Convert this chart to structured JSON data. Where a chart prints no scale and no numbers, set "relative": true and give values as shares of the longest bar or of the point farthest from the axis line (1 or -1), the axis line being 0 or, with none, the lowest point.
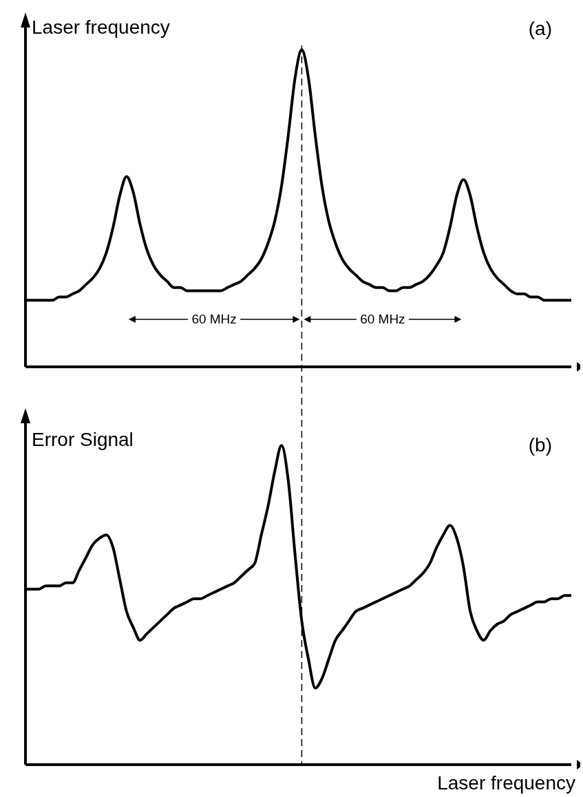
{
  "chart_data": [
    {
      "type": "line",
      "relative": true,
      "ylabel": "Laser frequency",
      "annotations": [
        "(a)",
        "60 MHz",
        "60 MHz"
      ],
      "legend": false,
      "grid": false,
      "marker": "none",
      "line_style": "solid",
      "categories": [
        null,
        null,
        null,
        null,
        null,
        null,
        null,
        null,
        null,
        null,
        null,
        null,
        null,
        null,
        null,
        null,
        null,
        null,
        null,
        null,
        null,
        null,
        null,
        null,
        null,
        null,
        null,
        null,
        null,
        null,
        null,
        null,
        null,
        null,
        null,
        null,
        null,
        null,
        null,
        null,
        null,
        null,
        null,
        null,
        null,
        null,
        null,
        null,
        null,
        null,
        null,
        null,
        null,
        null,
        null,
        null,
        null,
        null,
        null,
        null,
        null,
        null,
        null,
        null,
        null,
        null,
        null,
        null,
        null,
        null,
        null,
        null,
        null,
        null,
        null,
        null,
        null,
        null,
        null,
        null,
        null,
        null
      ],
      "series": [
        {
          "color": "#000000",
          "values": [
            0.21,
            0.21,
            0.21,
            0.21,
            0.21,
            0.22,
            0.22,
            0.23,
            0.24,
            0.26,
            0.28,
            0.31,
            0.36,
            0.44,
            0.54,
            0.6,
            0.55,
            0.45,
            0.37,
            0.32,
            0.29,
            0.27,
            0.25,
            0.25,
            0.24,
            0.24,
            0.24,
            0.24,
            0.24,
            0.24,
            0.25,
            0.26,
            0.27,
            0.29,
            0.31,
            0.34,
            0.39,
            0.46,
            0.57,
            0.73,
            0.91,
            1,
            0.91,
            0.73,
            0.57,
            0.46,
            0.39,
            0.34,
            0.31,
            0.29,
            0.27,
            0.26,
            0.25,
            0.25,
            0.24,
            0.24,
            0.25,
            0.25,
            0.26,
            0.27,
            0.29,
            0.32,
            0.36,
            0.44,
            0.54,
            0.59,
            0.54,
            0.44,
            0.36,
            0.31,
            0.28,
            0.26,
            0.24,
            0.23,
            0.23,
            0.22,
            0.22,
            0.21,
            0.21,
            0.21,
            0.21,
            0.21
          ]
        }
      ]
    },
    {
      "type": "line",
      "relative": true,
      "ylabel": "Error Signal",
      "xlabel": "Laser frequency",
      "annotations": [
        "(b)"
      ],
      "legend": false,
      "grid": false,
      "marker": "none",
      "line_style": "solid",
      "categories": [
        null,
        null,
        null,
        null,
        null,
        null,
        null,
        null,
        null,
        null,
        null,
        null,
        null,
        null,
        null,
        null,
        null,
        null,
        null,
        null,
        null,
        null,
        null,
        null,
        null,
        null,
        null,
        null,
        null,
        null,
        null,
        null,
        null,
        null,
        null,
        null,
        null,
        null,
        null,
        null,
        null,
        null,
        null,
        null,
        null,
        null,
        null,
        null,
        null,
        null,
        null,
        null,
        null,
        null,
        null,
        null,
        null,
        null,
        null,
        null,
        null,
        null,
        null,
        null,
        null,
        null,
        null,
        null,
        null,
        null,
        null,
        null,
        null,
        null,
        null,
        null,
        null,
        null,
        null,
        null,
        null,
        null
      ],
      "series": [
        {
          "color": "#000000",
          "values": [
            0.55,
            0.55,
            0.55,
            0.56,
            0.56,
            0.56,
            0.57,
            0.57,
            0.61,
            0.65,
            0.69,
            0.71,
            0.72,
            0.68,
            0.58,
            0.48,
            0.43,
            0.39,
            0.41,
            0.43,
            0.45,
            0.47,
            0.49,
            0.5,
            0.51,
            0.52,
            0.52,
            0.53,
            0.54,
            0.55,
            0.56,
            0.57,
            0.59,
            0.61,
            0.63,
            0.72,
            0.81,
            0.92,
            1,
            0.89,
            0.66,
            0.45,
            0.33,
            0.24,
            0.27,
            0.33,
            0.39,
            0.42,
            0.45,
            0.48,
            0.49,
            0.5,
            0.51,
            0.52,
            0.53,
            0.54,
            0.55,
            0.56,
            0.58,
            0.6,
            0.63,
            0.68,
            0.72,
            0.75,
            0.71,
            0.62,
            0.48,
            0.42,
            0.39,
            0.42,
            0.44,
            0.45,
            0.47,
            0.48,
            0.49,
            0.5,
            0.51,
            0.51,
            0.52,
            0.52,
            0.53,
            0.53
          ]
        }
      ]
    }
  ]
}
